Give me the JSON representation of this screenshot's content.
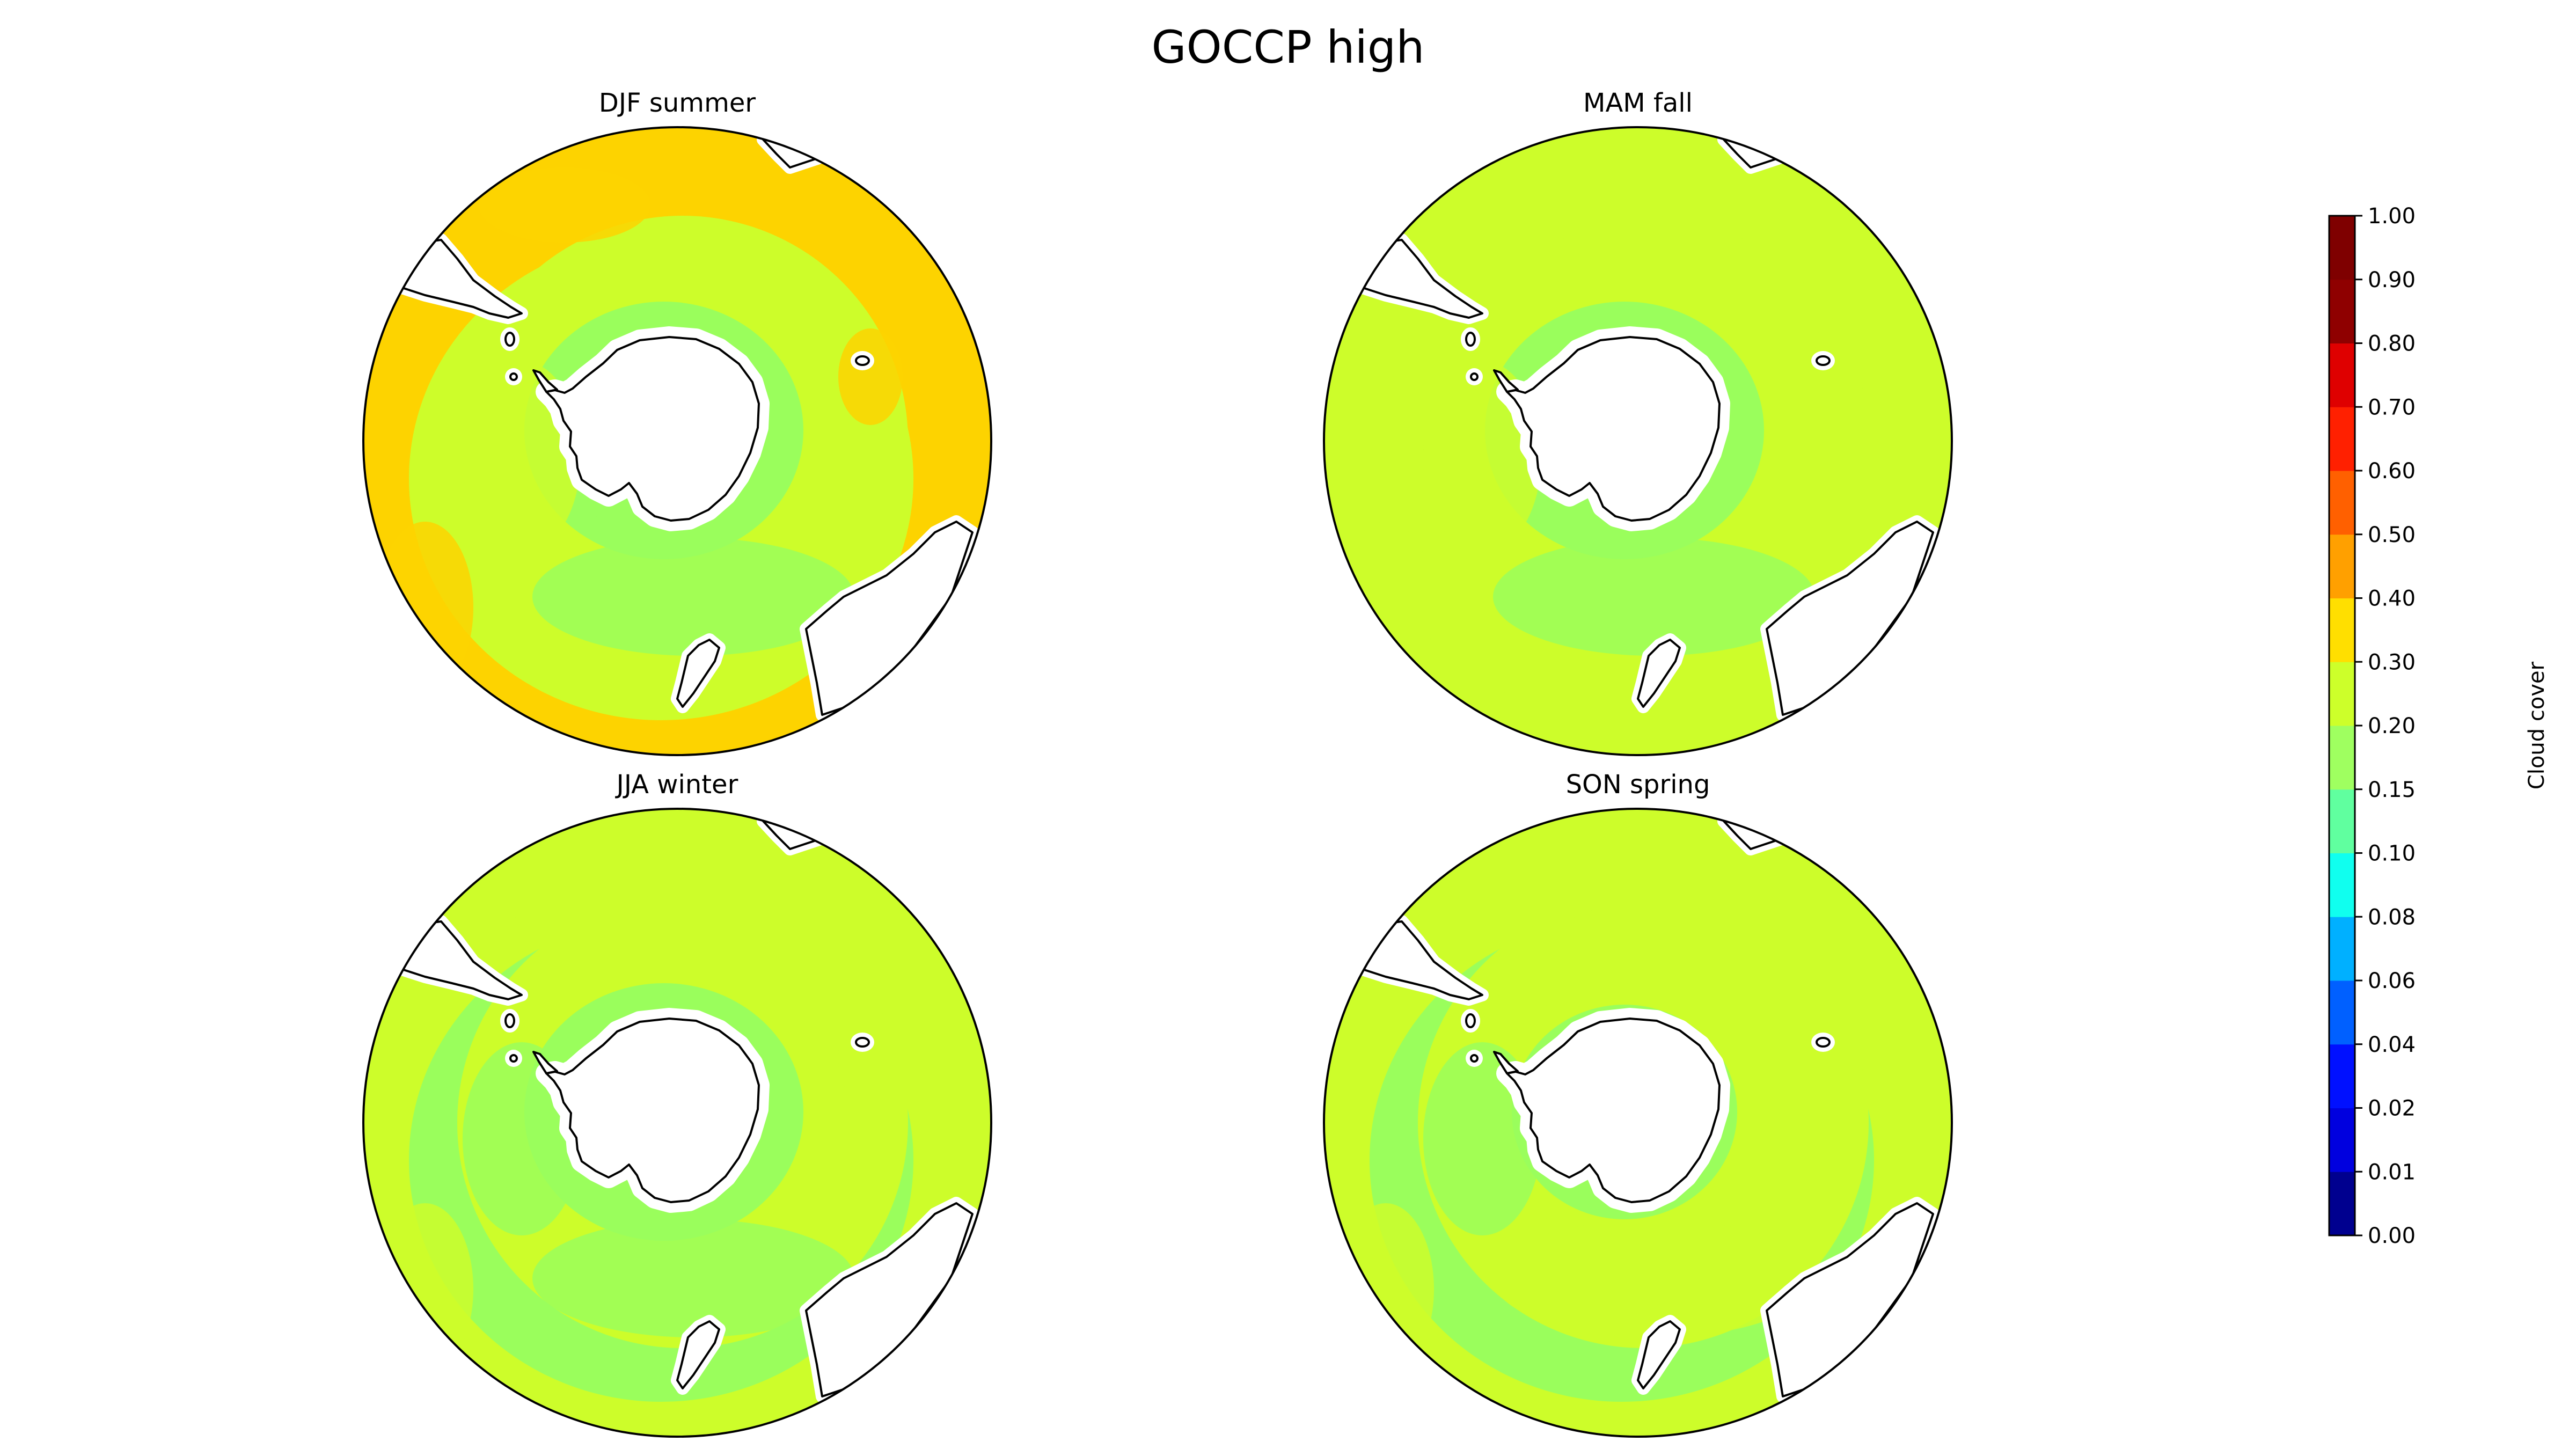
{
  "figure": {
    "title": "GOCCP high"
  },
  "panels": [
    {
      "id": "djf",
      "title": "DJF summer",
      "ring_colors": [
        "#fdd300",
        "#cdfd2a",
        "#9afe5c",
        "#cdfd2a",
        "#9afe5c"
      ]
    },
    {
      "id": "mam",
      "title": "MAM fall",
      "ring_colors": [
        "#cdfd2a",
        "#cdfd2a",
        "#9afe5c",
        "#cdfd2a",
        "#9afe5c"
      ]
    },
    {
      "id": "jja",
      "title": "JJA winter",
      "ring_colors": [
        "#cdfd2a",
        "#9afe5c",
        "#9afe5c",
        "#cdfd2a",
        "#9afe5c"
      ]
    },
    {
      "id": "son",
      "title": "SON spring",
      "ring_colors": [
        "#cdfd2a",
        "#9afe5c",
        "#cdfd2a",
        "#cdfd2a",
        "#9afe5c"
      ]
    }
  ],
  "colorbar": {
    "label": "Cloud cover",
    "ticks": [
      "0.00",
      "0.01",
      "0.02",
      "0.04",
      "0.06",
      "0.08",
      "0.10",
      "0.15",
      "0.20",
      "0.30",
      "0.40",
      "0.50",
      "0.60",
      "0.70",
      "0.80",
      "0.90",
      "1.00"
    ],
    "colors": [
      "#00008f",
      "#0000df",
      "#0010ff",
      "#0060ff",
      "#00b0ff",
      "#10ffef",
      "#60ff9f",
      "#9fff60",
      "#cdff2a",
      "#ffdf00",
      "#ffa000",
      "#ff6000",
      "#ff2000",
      "#df0000",
      "#8f0000",
      "#7f0000"
    ]
  },
  "colors": {
    "land": "#ffffff",
    "ocean_base": "#cdfd2a",
    "coast": "#000000"
  }
}
